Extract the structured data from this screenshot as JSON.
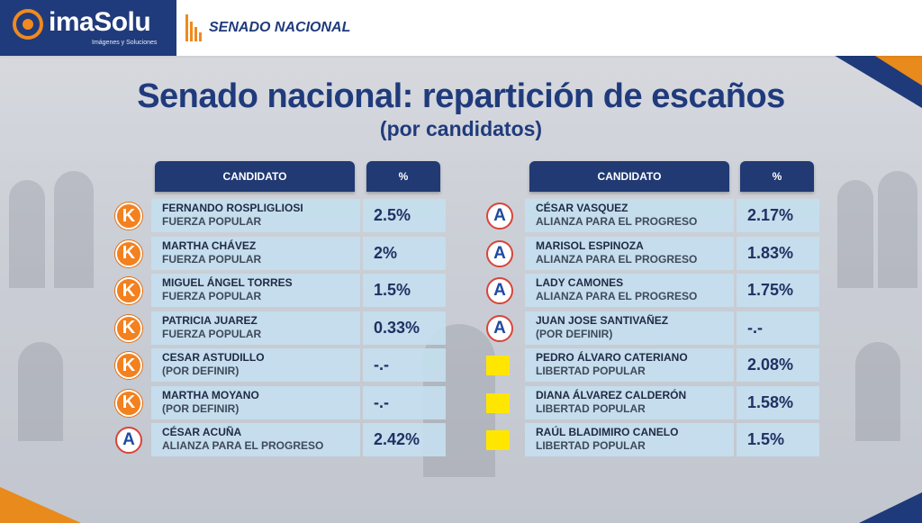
{
  "header": {
    "logo_name": "imaSolu",
    "logo_tagline": "Imágenes y Soluciones",
    "section_title": "SENADO NACIONAL"
  },
  "title": "Senado nacional: repartición de escaños",
  "subtitle": "(por candidatos)",
  "columns": {
    "candidate": "CANDIDATO",
    "percent": "%"
  },
  "colors": {
    "navy": "#213a73",
    "orange": "#f08a1e",
    "row_bg": "#c4deee"
  },
  "left": [
    {
      "name": "FERNANDO ROSPLIGLIOSI",
      "party": "FUERZA POPULAR",
      "pct": "2.5%",
      "logo": "fuerza-popular-k-icon",
      "glyph": "K"
    },
    {
      "name": "MARTHA CHÁVEZ",
      "party": "FUERZA POPULAR",
      "pct": "2%",
      "logo": "fuerza-popular-k-icon",
      "glyph": "K"
    },
    {
      "name": "MIGUEL ÁNGEL TORRES",
      "party": "FUERZA POPULAR",
      "pct": "1.5%",
      "logo": "fuerza-popular-k-icon",
      "glyph": "K"
    },
    {
      "name": "PATRICIA JUAREZ",
      "party": "FUERZA POPULAR",
      "pct": "0.33%",
      "logo": "fuerza-popular-k-icon",
      "glyph": "K"
    },
    {
      "name": "CESAR ASTUDILLO",
      "party": "(POR DEFINIR)",
      "pct": "-.-",
      "logo": "fuerza-popular-k-icon",
      "glyph": "K"
    },
    {
      "name": "MARTHA MOYANO",
      "party": "(POR DEFINIR)",
      "pct": "-.-",
      "logo": "fuerza-popular-k-icon",
      "glyph": "K"
    },
    {
      "name": "CÉSAR ACUÑA",
      "party": "ALIANZA PARA EL PROGRESO",
      "pct": "2.42%",
      "logo": "alianza-progreso-a-icon",
      "glyph": "A"
    }
  ],
  "right": [
    {
      "name": "CÉSAR VASQUEZ",
      "party": "ALIANZA PARA EL PROGRESO",
      "pct": "2.17%",
      "logo": "alianza-progreso-a-icon",
      "glyph": "A"
    },
    {
      "name": "MARISOL ESPINOZA",
      "party": "ALIANZA PARA EL PROGRESO",
      "pct": "1.83%",
      "logo": "alianza-progreso-a-icon",
      "glyph": "A"
    },
    {
      "name": "LADY CAMONES",
      "party": "ALIANZA PARA EL PROGRESO",
      "pct": "1.75%",
      "logo": "alianza-progreso-a-icon",
      "glyph": "A"
    },
    {
      "name": "JUAN JOSE SANTIVAÑEZ",
      "party": "(POR DEFINIR)",
      "pct": "-.-",
      "logo": "alianza-progreso-a-icon",
      "glyph": "A"
    },
    {
      "name": "PEDRO ÁLVARO CATERIANO",
      "party": "LIBERTAD  POPULAR",
      "pct": "2.08%",
      "logo": "libertad-popular-icon",
      "glyph": ""
    },
    {
      "name": "DIANA ÁLVAREZ CALDERÓN",
      "party": "LIBERTAD  POPULAR",
      "pct": "1.58%",
      "logo": "libertad-popular-icon",
      "glyph": ""
    },
    {
      "name": "RAÚL BLADIMIRO CANELO",
      "party": "LIBERTAD  POPULAR",
      "pct": "1.5%",
      "logo": "libertad-popular-icon",
      "glyph": ""
    }
  ]
}
